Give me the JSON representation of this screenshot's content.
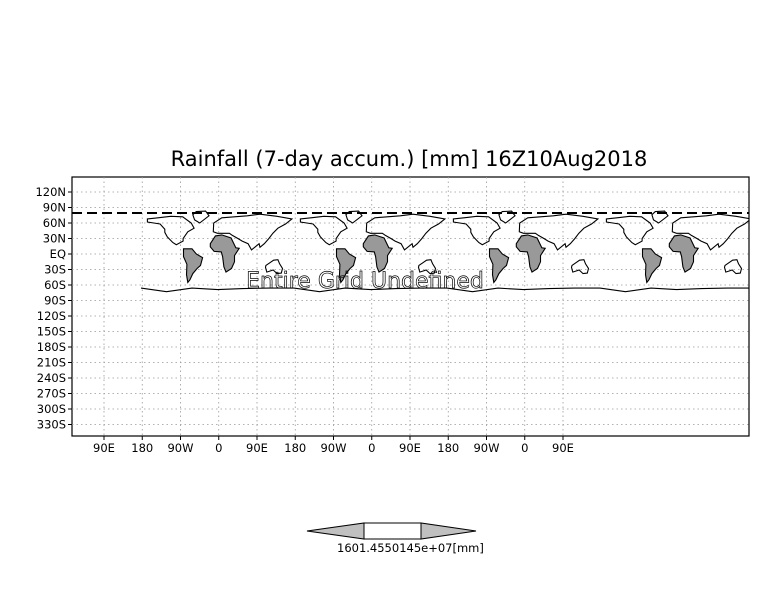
{
  "map": {
    "title": "Rainfall (7-day accum.) [mm] 16Z10Aug2018",
    "message": "Entire Grid Undefined",
    "lat_labels": [
      "120N",
      "90N",
      "60N",
      "30N",
      "EQ",
      "30S",
      "60S",
      "90S",
      "120S",
      "150S",
      "180S",
      "210S",
      "240S",
      "270S",
      "300S",
      "330S"
    ],
    "lon_labels": [
      "90E",
      "180",
      "90W",
      "0",
      "90E",
      "180",
      "90W",
      "0",
      "90E",
      "180",
      "90W",
      "0",
      "90E"
    ],
    "land_color": "#999999",
    "grid": "dotted"
  },
  "colorbar": {
    "label": "1601.4550145e+07[mm]",
    "fill_color": "#c0c0c0"
  }
}
